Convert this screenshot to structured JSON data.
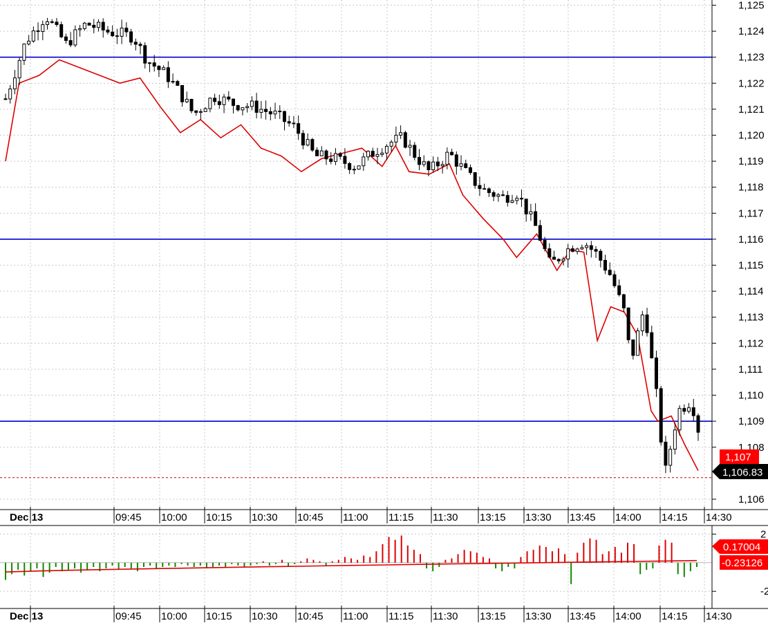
{
  "chart_data": [
    {
      "type": "candlestick",
      "x_labels": [
        "Dec 13",
        "09:45",
        "10:00",
        "10:15",
        "10:30",
        "10:45",
        "11:00",
        "11:15",
        "11:30",
        "13:15",
        "13:30",
        "13:45",
        "14:00",
        "14:15",
        "14:30"
      ],
      "y_ticks": [
        "1,125",
        "1,124",
        "1,123",
        "1,122",
        "1,121",
        "1,120",
        "1,119",
        "1,118",
        "1,117",
        "1,116",
        "1,115",
        "1,114",
        "1,113",
        "1,112",
        "1,111",
        "1,110",
        "1,109",
        "1,108",
        "1,106"
      ],
      "ylim": [
        1105.6,
        1125.2
      ],
      "grid": true,
      "horizontal_lines": [
        1123.0,
        1116.0,
        1109.0
      ],
      "last_price_label": "1,106.83",
      "last_price_value": 1106.83,
      "red_line_label": "1,107",
      "red_line_value": 1107.1,
      "close_path": [
        [
          0,
          1121.4
        ],
        [
          0.03,
          1123.6
        ],
        [
          0.06,
          1124.6
        ],
        [
          0.09,
          1123.5
        ],
        [
          0.12,
          1124.3
        ],
        [
          0.15,
          1124.0
        ],
        [
          0.19,
          1123.8
        ],
        [
          0.21,
          1122.9
        ],
        [
          0.24,
          1122.3
        ],
        [
          0.26,
          1121.6
        ],
        [
          0.28,
          1120.8
        ],
        [
          0.31,
          1121.5
        ],
        [
          0.34,
          1121.2
        ],
        [
          0.37,
          1121.1
        ],
        [
          0.4,
          1120.8
        ],
        [
          0.43,
          1120.3
        ],
        [
          0.46,
          1119.2
        ],
        [
          0.49,
          1119.1
        ],
        [
          0.52,
          1118.8
        ],
        [
          0.55,
          1119.4
        ],
        [
          0.57,
          1119.7
        ],
        [
          0.59,
          1119.9
        ],
        [
          0.61,
          1119.2
        ],
        [
          0.63,
          1118.6
        ],
        [
          0.66,
          1119.3
        ],
        [
          0.69,
          1118.4
        ],
        [
          0.71,
          1117.9
        ],
        [
          0.74,
          1117.6
        ],
        [
          0.76,
          1117.8
        ],
        [
          0.79,
          1116.4
        ],
        [
          0.81,
          1115.0
        ],
        [
          0.84,
          1115.7
        ],
        [
          0.86,
          1115.9
        ],
        [
          0.88,
          1115.4
        ],
        [
          0.9,
          1114.6
        ],
        [
          0.92,
          1113.2
        ],
        [
          0.93,
          1111.3
        ],
        [
          0.95,
          1113.4
        ],
        [
          0.97,
          1109.6
        ],
        [
          0.98,
          1106.9
        ],
        [
          1.0,
          1109.4
        ],
        [
          1.02,
          1109.8
        ],
        [
          1.03,
          1108.7
        ]
      ],
      "red_line_path": [
        [
          0,
          1119.0
        ],
        [
          0.02,
          1122.0
        ],
        [
          0.05,
          1122.3
        ],
        [
          0.08,
          1122.9
        ],
        [
          0.11,
          1122.6
        ],
        [
          0.14,
          1122.3
        ],
        [
          0.17,
          1122.0
        ],
        [
          0.2,
          1122.2
        ],
        [
          0.23,
          1121.1
        ],
        [
          0.26,
          1120.1
        ],
        [
          0.29,
          1120.6
        ],
        [
          0.32,
          1119.9
        ],
        [
          0.35,
          1120.4
        ],
        [
          0.38,
          1119.5
        ],
        [
          0.41,
          1119.2
        ],
        [
          0.44,
          1118.6
        ],
        [
          0.47,
          1119.1
        ],
        [
          0.5,
          1119.3
        ],
        [
          0.53,
          1119.5
        ],
        [
          0.56,
          1118.8
        ],
        [
          0.58,
          1119.6
        ],
        [
          0.6,
          1118.6
        ],
        [
          0.63,
          1118.5
        ],
        [
          0.66,
          1118.9
        ],
        [
          0.68,
          1117.7
        ],
        [
          0.71,
          1116.8
        ],
        [
          0.74,
          1116.0
        ],
        [
          0.76,
          1115.3
        ],
        [
          0.79,
          1116.2
        ],
        [
          0.82,
          1114.8
        ],
        [
          0.84,
          1115.6
        ],
        [
          0.86,
          1115.5
        ],
        [
          0.88,
          1112.1
        ],
        [
          0.9,
          1113.4
        ],
        [
          0.92,
          1113.2
        ],
        [
          0.94,
          1112.3
        ],
        [
          0.96,
          1109.4
        ],
        [
          0.97,
          1109.0
        ],
        [
          0.99,
          1109.2
        ],
        [
          1.01,
          1108.1
        ],
        [
          1.03,
          1107.1
        ]
      ]
    },
    {
      "type": "histogram",
      "y_ticks": [
        "2",
        "-2"
      ],
      "ylim": [
        -3.2,
        2.6
      ],
      "label_upper": "0.17004",
      "label_lower": "-0.23126",
      "values": [
        -1.2,
        -0.8,
        -0.5,
        -0.9,
        -0.6,
        -0.4,
        -1.0,
        -0.7,
        -0.3,
        -0.6,
        -0.5,
        -0.4,
        -0.7,
        -0.5,
        -0.3,
        -0.6,
        -0.4,
        -0.2,
        -0.5,
        -0.3,
        -0.4,
        -0.6,
        -0.3,
        -0.2,
        -0.4,
        -0.3,
        -0.2,
        -0.3,
        -0.1,
        -0.2,
        -0.3,
        -0.2,
        -0.4,
        -0.3,
        -0.2,
        -0.3,
        -0.1,
        -0.2,
        -0.3,
        -0.2,
        -0.1,
        0.1,
        -0.2,
        -0.1,
        0.2,
        -0.3,
        -0.1,
        0.1,
        0.3,
        0.2,
        0.1,
        -0.2,
        0.1,
        0.2,
        0.4,
        0.3,
        0.2,
        0.5,
        0.4,
        0.8,
        1.3,
        1.8,
        1.6,
        1.9,
        1.2,
        0.9,
        0.6,
        -0.4,
        -0.6,
        -0.3,
        0.2,
        0.3,
        0.6,
        0.9,
        0.8,
        0.7,
        0.4,
        0.3,
        -0.4,
        -0.6,
        -0.3,
        -0.4,
        0.4,
        0.8,
        0.9,
        1.2,
        1.1,
        0.8,
        1.0,
        0.6,
        -1.5,
        0.7,
        1.4,
        1.7,
        1.6,
        0.6,
        0.8,
        1.1,
        0.7,
        1.4,
        1.3,
        -0.8,
        -0.5,
        -0.4,
        1.2,
        1.6,
        1.4,
        -0.8,
        -1.0,
        -0.6,
        -0.3
      ]
    }
  ]
}
